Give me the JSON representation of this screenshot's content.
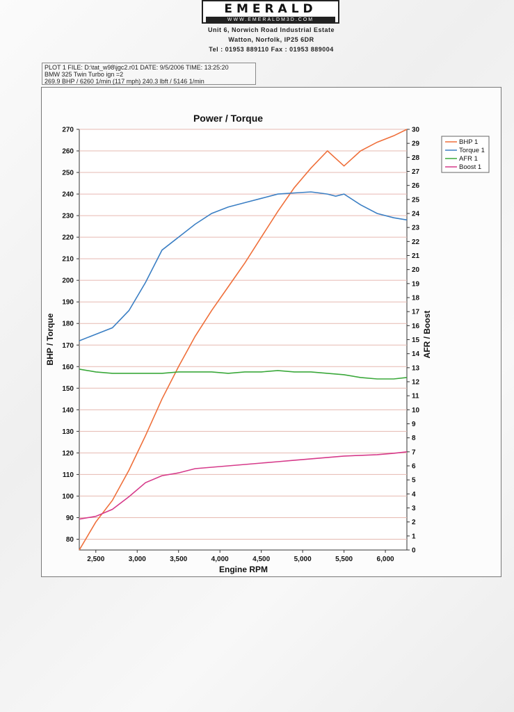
{
  "header": {
    "logo_name": "EMERALD",
    "logo_url": "WWW.EMERALDM3D.COM",
    "address_line1": "Unit 6, Norwich Road Industrial Estate",
    "address_line2": "Watton, Norfolk, IP25 6DR",
    "phone_fax": "Tel : 01953 889110   Fax : 01953 889004"
  },
  "info": {
    "line1": "PLOT 1 FILE: D:\\tat_w98\\jgc2.r01  DATE: 9/5/2006  TIME: 13:25:20",
    "line2": "BMW 325 Twin Turbo ign =2",
    "line3": "269.9 BHP / 6260 1/min (117 mph)   240.3 lbft / 5146 1/min"
  },
  "colors": {
    "bhp": "#ef6f3a",
    "torque": "#3b7fc4",
    "afr": "#3aa83a",
    "boost": "#d63a8a",
    "grid": "#e6b8b0"
  },
  "chart_data": {
    "type": "line",
    "title": "Power / Torque",
    "xlabel": "Engine RPM",
    "ylabel_left": "BHP / Torque",
    "ylabel_right": "AFR / Boost",
    "xlim": [
      2300,
      6260
    ],
    "ylim_left": [
      75,
      270
    ],
    "ylim_right": [
      0,
      30
    ],
    "x_ticks": [
      2500,
      3000,
      3500,
      4000,
      4500,
      5000,
      5500,
      6000
    ],
    "x_tick_labels": [
      "2,500",
      "3,000",
      "3,500",
      "4,000",
      "4,500",
      "5,000",
      "5,500",
      "6,000"
    ],
    "left_ticks": [
      80,
      90,
      100,
      110,
      120,
      130,
      140,
      150,
      160,
      170,
      180,
      190,
      200,
      210,
      220,
      230,
      240,
      250,
      260,
      270
    ],
    "right_ticks": [
      0,
      1,
      2,
      3,
      4,
      5,
      6,
      7,
      8,
      9,
      10,
      11,
      12,
      13,
      14,
      15,
      16,
      17,
      18,
      19,
      20,
      21,
      22,
      23,
      24,
      25,
      26,
      27,
      28,
      29,
      30
    ],
    "legend": [
      "BHP 1",
      "Torque 1",
      "AFR 1",
      "Boost 1"
    ],
    "series": [
      {
        "name": "BHP 1",
        "axis": "left",
        "x": [
          2300,
          2500,
          2700,
          2900,
          3100,
          3300,
          3500,
          3700,
          3900,
          4100,
          4300,
          4500,
          4700,
          4900,
          5100,
          5300,
          5500,
          5700,
          5900,
          6100,
          6260
        ],
        "y": [
          75,
          88,
          98,
          112,
          128,
          145,
          160,
          174,
          186,
          197,
          208,
          220,
          232,
          243,
          252,
          260,
          253,
          260,
          264,
          267,
          270
        ]
      },
      {
        "name": "Torque 1",
        "axis": "left",
        "x": [
          2300,
          2500,
          2700,
          2900,
          3100,
          3300,
          3500,
          3700,
          3900,
          4100,
          4300,
          4500,
          4700,
          4900,
          5100,
          5200,
          5300,
          5400,
          5500,
          5700,
          5900,
          6100,
          6260
        ],
        "y": [
          172,
          175,
          178,
          186,
          199,
          214,
          220,
          226,
          231,
          234,
          236,
          238,
          240,
          240.5,
          241,
          240.5,
          240,
          239,
          240,
          235,
          231,
          229,
          228
        ]
      },
      {
        "name": "AFR 1",
        "axis": "right",
        "x": [
          2300,
          2500,
          2700,
          2900,
          3100,
          3300,
          3500,
          3700,
          3900,
          4100,
          4300,
          4500,
          4700,
          4900,
          5100,
          5300,
          5500,
          5700,
          5900,
          6100,
          6260
        ],
        "y": [
          12.9,
          12.7,
          12.6,
          12.6,
          12.6,
          12.6,
          12.7,
          12.7,
          12.7,
          12.6,
          12.7,
          12.7,
          12.8,
          12.7,
          12.7,
          12.6,
          12.5,
          12.3,
          12.2,
          12.2,
          12.3
        ]
      },
      {
        "name": "Boost 1",
        "axis": "right",
        "x": [
          2300,
          2500,
          2700,
          2900,
          3100,
          3300,
          3500,
          3700,
          3900,
          4100,
          4300,
          4500,
          4700,
          4900,
          5100,
          5300,
          5500,
          5700,
          5900,
          6100,
          6260
        ],
        "y": [
          2.2,
          2.4,
          2.9,
          3.8,
          4.8,
          5.3,
          5.5,
          5.8,
          5.9,
          6.0,
          6.1,
          6.2,
          6.3,
          6.4,
          6.5,
          6.6,
          6.7,
          6.75,
          6.8,
          6.9,
          7.0
        ]
      }
    ]
  }
}
